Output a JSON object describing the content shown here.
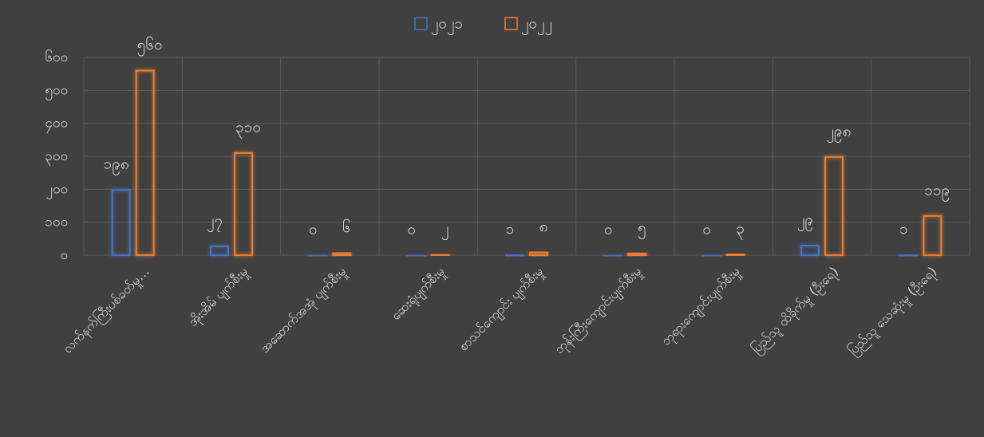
{
  "chart_data": {
    "type": "bar",
    "categories": [
      "လက်နက်ကြီးပစ်ခတ်မှု…",
      "အိုးအိမ် ပျက်စီးမှု",
      "အဆောက်အအုံ ပျက်စီးမှု",
      "ဆေးရုံပျက်စီးမှု",
      "စာသင်ကျောင်း ပျက်စီးမှု",
      "ဘုန်းကြီးကျောင်းပျက်စီးမှု",
      "ဘုရားကျောင်းပျက်စီးမှု",
      "ပြည်သူ ထိခိုက်မှု (ဦးရေ)",
      "ပြည်သူ သေဆုံးမှု (ဦးရေ)"
    ],
    "series": [
      {
        "name": "၂၀၂၁",
        "color": "#4472c4",
        "values": [
          198,
          27,
          0,
          0,
          1,
          0,
          0,
          29,
          1
        ],
        "value_labels": [
          "၁၉၈",
          "၂၇",
          "၀",
          "၀",
          "၁",
          "၀",
          "၀",
          "၂၉",
          "၁"
        ]
      },
      {
        "name": "၂၀၂၂",
        "color": "#ed7d31",
        "values": [
          560,
          310,
          6,
          2,
          8,
          5,
          3,
          298,
          119
        ],
        "value_labels": [
          "၅၆၀",
          "၃၁၀",
          "၆",
          "၂",
          "၈",
          "၅",
          "၃",
          "၂၉၈",
          "၁၁၉"
        ]
      }
    ],
    "ylim": [
      0,
      600
    ],
    "yticks": [
      {
        "value": 0,
        "label": "၀"
      },
      {
        "value": 100,
        "label": "၁၀၀"
      },
      {
        "value": 200,
        "label": "၂၀၀"
      },
      {
        "value": 300,
        "label": "၃၀၀"
      },
      {
        "value": 400,
        "label": "၄၀၀"
      },
      {
        "value": 500,
        "label": "၅၀၀"
      },
      {
        "value": 600,
        "label": "၆၀၀"
      }
    ],
    "grid": true,
    "legend": "top"
  }
}
